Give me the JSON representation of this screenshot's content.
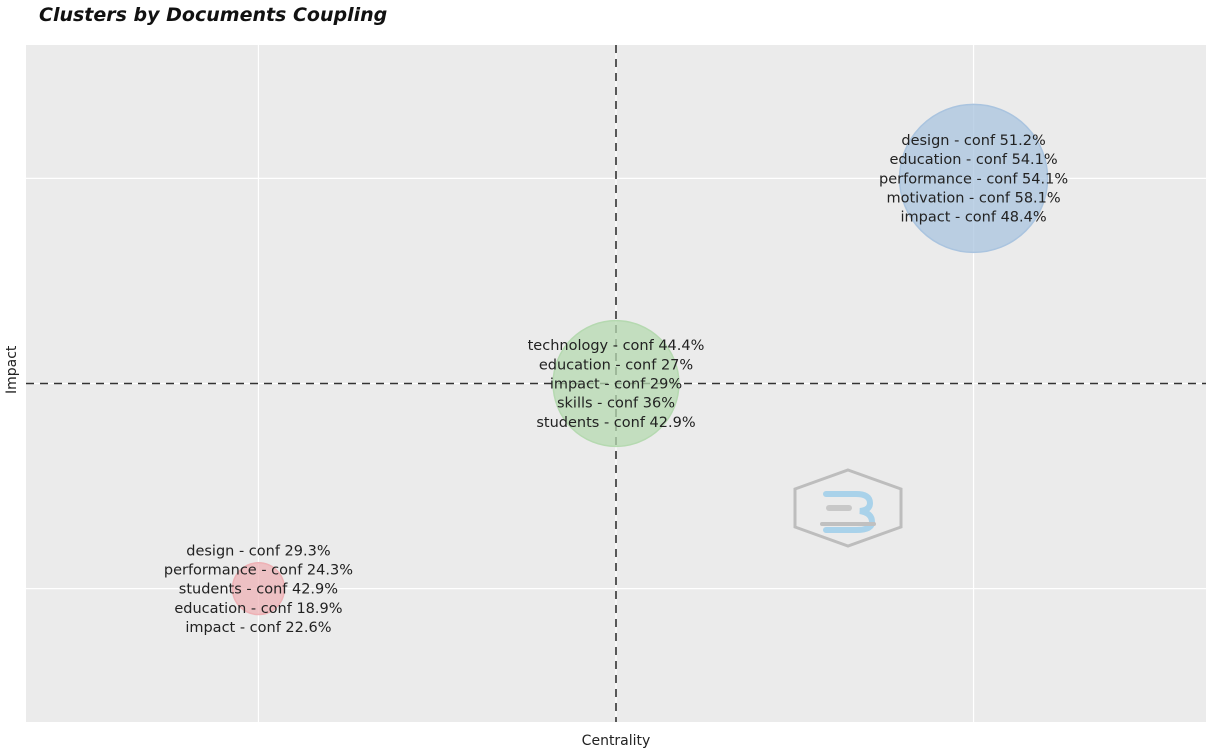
{
  "chart_data": {
    "type": "scatter",
    "title": "Clusters by Documents Coupling",
    "xlabel": "Centrality",
    "ylabel": "Impact",
    "xlim": [
      -1.65,
      1.65
    ],
    "ylim": [
      -1.65,
      1.65
    ],
    "grid": true,
    "reference_lines": {
      "x": 0,
      "y": 0,
      "style": "dashed"
    },
    "series": [
      {
        "x": 1.0,
        "y": 1.0,
        "size": 1.0,
        "color": "#aac4df",
        "labels": [
          "design - conf 51.2%",
          "education - conf 54.1%",
          "performance - conf 54.1%",
          "motivation - conf 58.1%",
          "impact - conf 48.4%"
        ]
      },
      {
        "x": 0.0,
        "y": 0.0,
        "size": 0.85,
        "color": "#b5d9b0",
        "labels": [
          "technology - conf 44.4%",
          "education - conf 27%",
          "impact - conf 29%",
          "skills - conf 36%",
          "students - conf 42.9%"
        ]
      },
      {
        "x": -1.0,
        "y": -1.0,
        "size": 0.35,
        "color": "#eeb1b5",
        "labels": [
          "design - conf 29.3%",
          "performance - conf 24.3%",
          "students - conf 42.9%",
          "education - conf 18.9%",
          "impact - conf 22.6%"
        ]
      }
    ]
  }
}
